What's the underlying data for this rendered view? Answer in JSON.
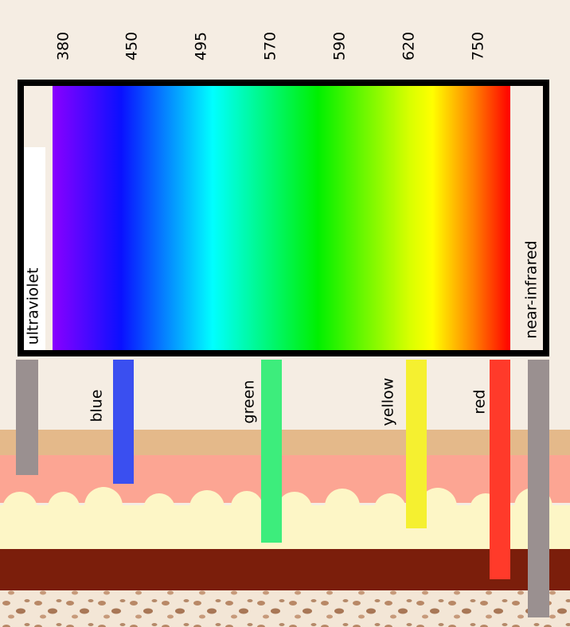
{
  "wavelengths": [
    "380",
    "450",
    "495",
    "570",
    "590",
    "620",
    "750"
  ],
  "bands": {
    "ultraviolet": "ultraviolet",
    "blue": "blue",
    "green": "green",
    "yellow": "yellow",
    "red": "red",
    "near_infrared": "near-infrared"
  }
}
